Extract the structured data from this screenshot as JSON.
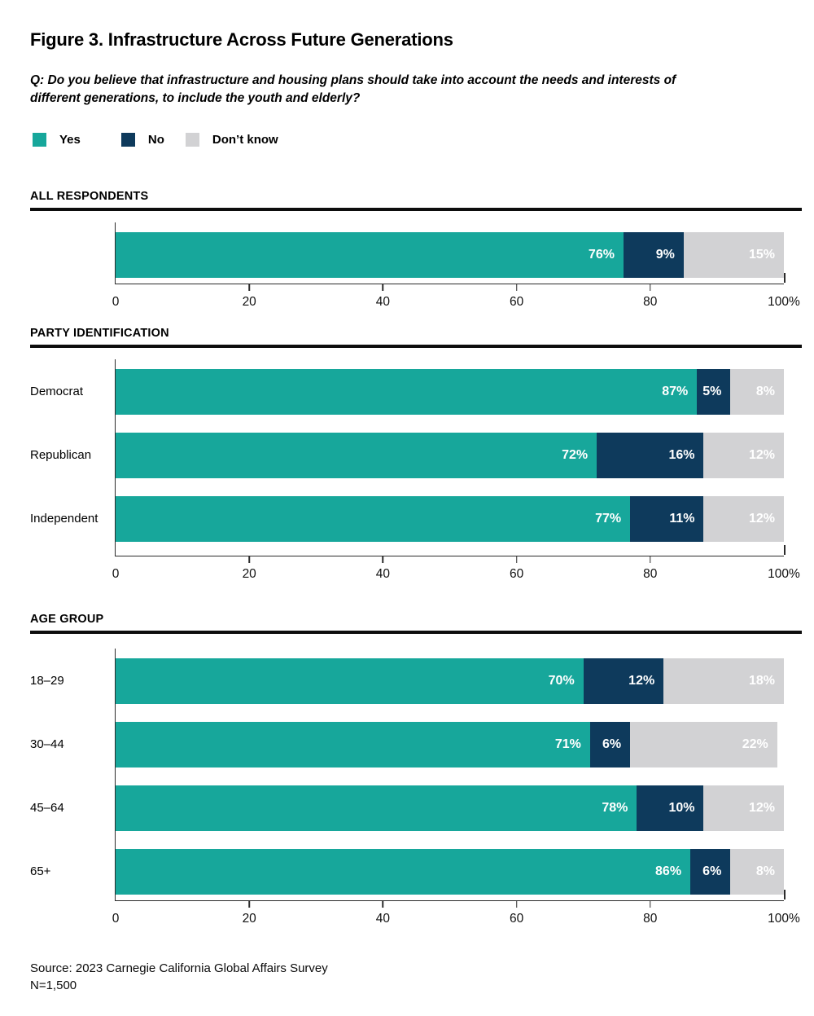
{
  "page": {
    "title": "Figure 3. Infrastructure Across Future Generations",
    "question": "Q: Do you believe that infrastructure and housing plans should take into account the needs and interests of different generations, to include the youth and elderly?",
    "source_line1": "Source: 2023 Carnegie California Global Affairs Survey",
    "source_line2": "N=1,500"
  },
  "legend": {
    "items": [
      {
        "label": "Yes",
        "color": "#17A79B"
      },
      {
        "label": "No",
        "color": "#0E3A5C"
      },
      {
        "label": "Don’t know",
        "color": "#D2D2D4"
      }
    ]
  },
  "axis": {
    "tick_labels": [
      "0",
      "20",
      "40",
      "60",
      "80",
      "100%"
    ],
    "tick_positions": [
      0,
      20,
      40,
      60,
      80,
      100
    ],
    "xlim": [
      0,
      100
    ]
  },
  "chart_data": [
    {
      "type": "bar",
      "stacked": true,
      "orientation": "horizontal",
      "group_title": "ALL RESPONDENTS",
      "show_row_labels": false,
      "categories": [
        ""
      ],
      "series": [
        {
          "name": "Yes",
          "values": [
            76
          ]
        },
        {
          "name": "No",
          "values": [
            9
          ]
        },
        {
          "name": "Don’t know",
          "values": [
            15
          ]
        }
      ],
      "unit": "%",
      "xlim": [
        0,
        100
      ]
    },
    {
      "type": "bar",
      "stacked": true,
      "orientation": "horizontal",
      "group_title": "PARTY IDENTIFICATION",
      "show_row_labels": true,
      "categories": [
        "Democrat",
        "Republican",
        "Independent"
      ],
      "series": [
        {
          "name": "Yes",
          "values": [
            87,
            72,
            77
          ]
        },
        {
          "name": "No",
          "values": [
            5,
            16,
            11
          ]
        },
        {
          "name": "Don’t know",
          "values": [
            8,
            12,
            12
          ]
        }
      ],
      "unit": "%",
      "xlim": [
        0,
        100
      ]
    },
    {
      "type": "bar",
      "stacked": true,
      "orientation": "horizontal",
      "group_title": "AGE GROUP",
      "show_row_labels": true,
      "categories": [
        "18–29",
        "30–44",
        "45–64",
        "65+"
      ],
      "series": [
        {
          "name": "Yes",
          "values": [
            70,
            71,
            78,
            86
          ]
        },
        {
          "name": "No",
          "values": [
            12,
            6,
            10,
            6
          ]
        },
        {
          "name": "Don’t know",
          "values": [
            18,
            22,
            12,
            8
          ]
        }
      ],
      "unit": "%",
      "xlim": [
        0,
        100
      ]
    }
  ]
}
